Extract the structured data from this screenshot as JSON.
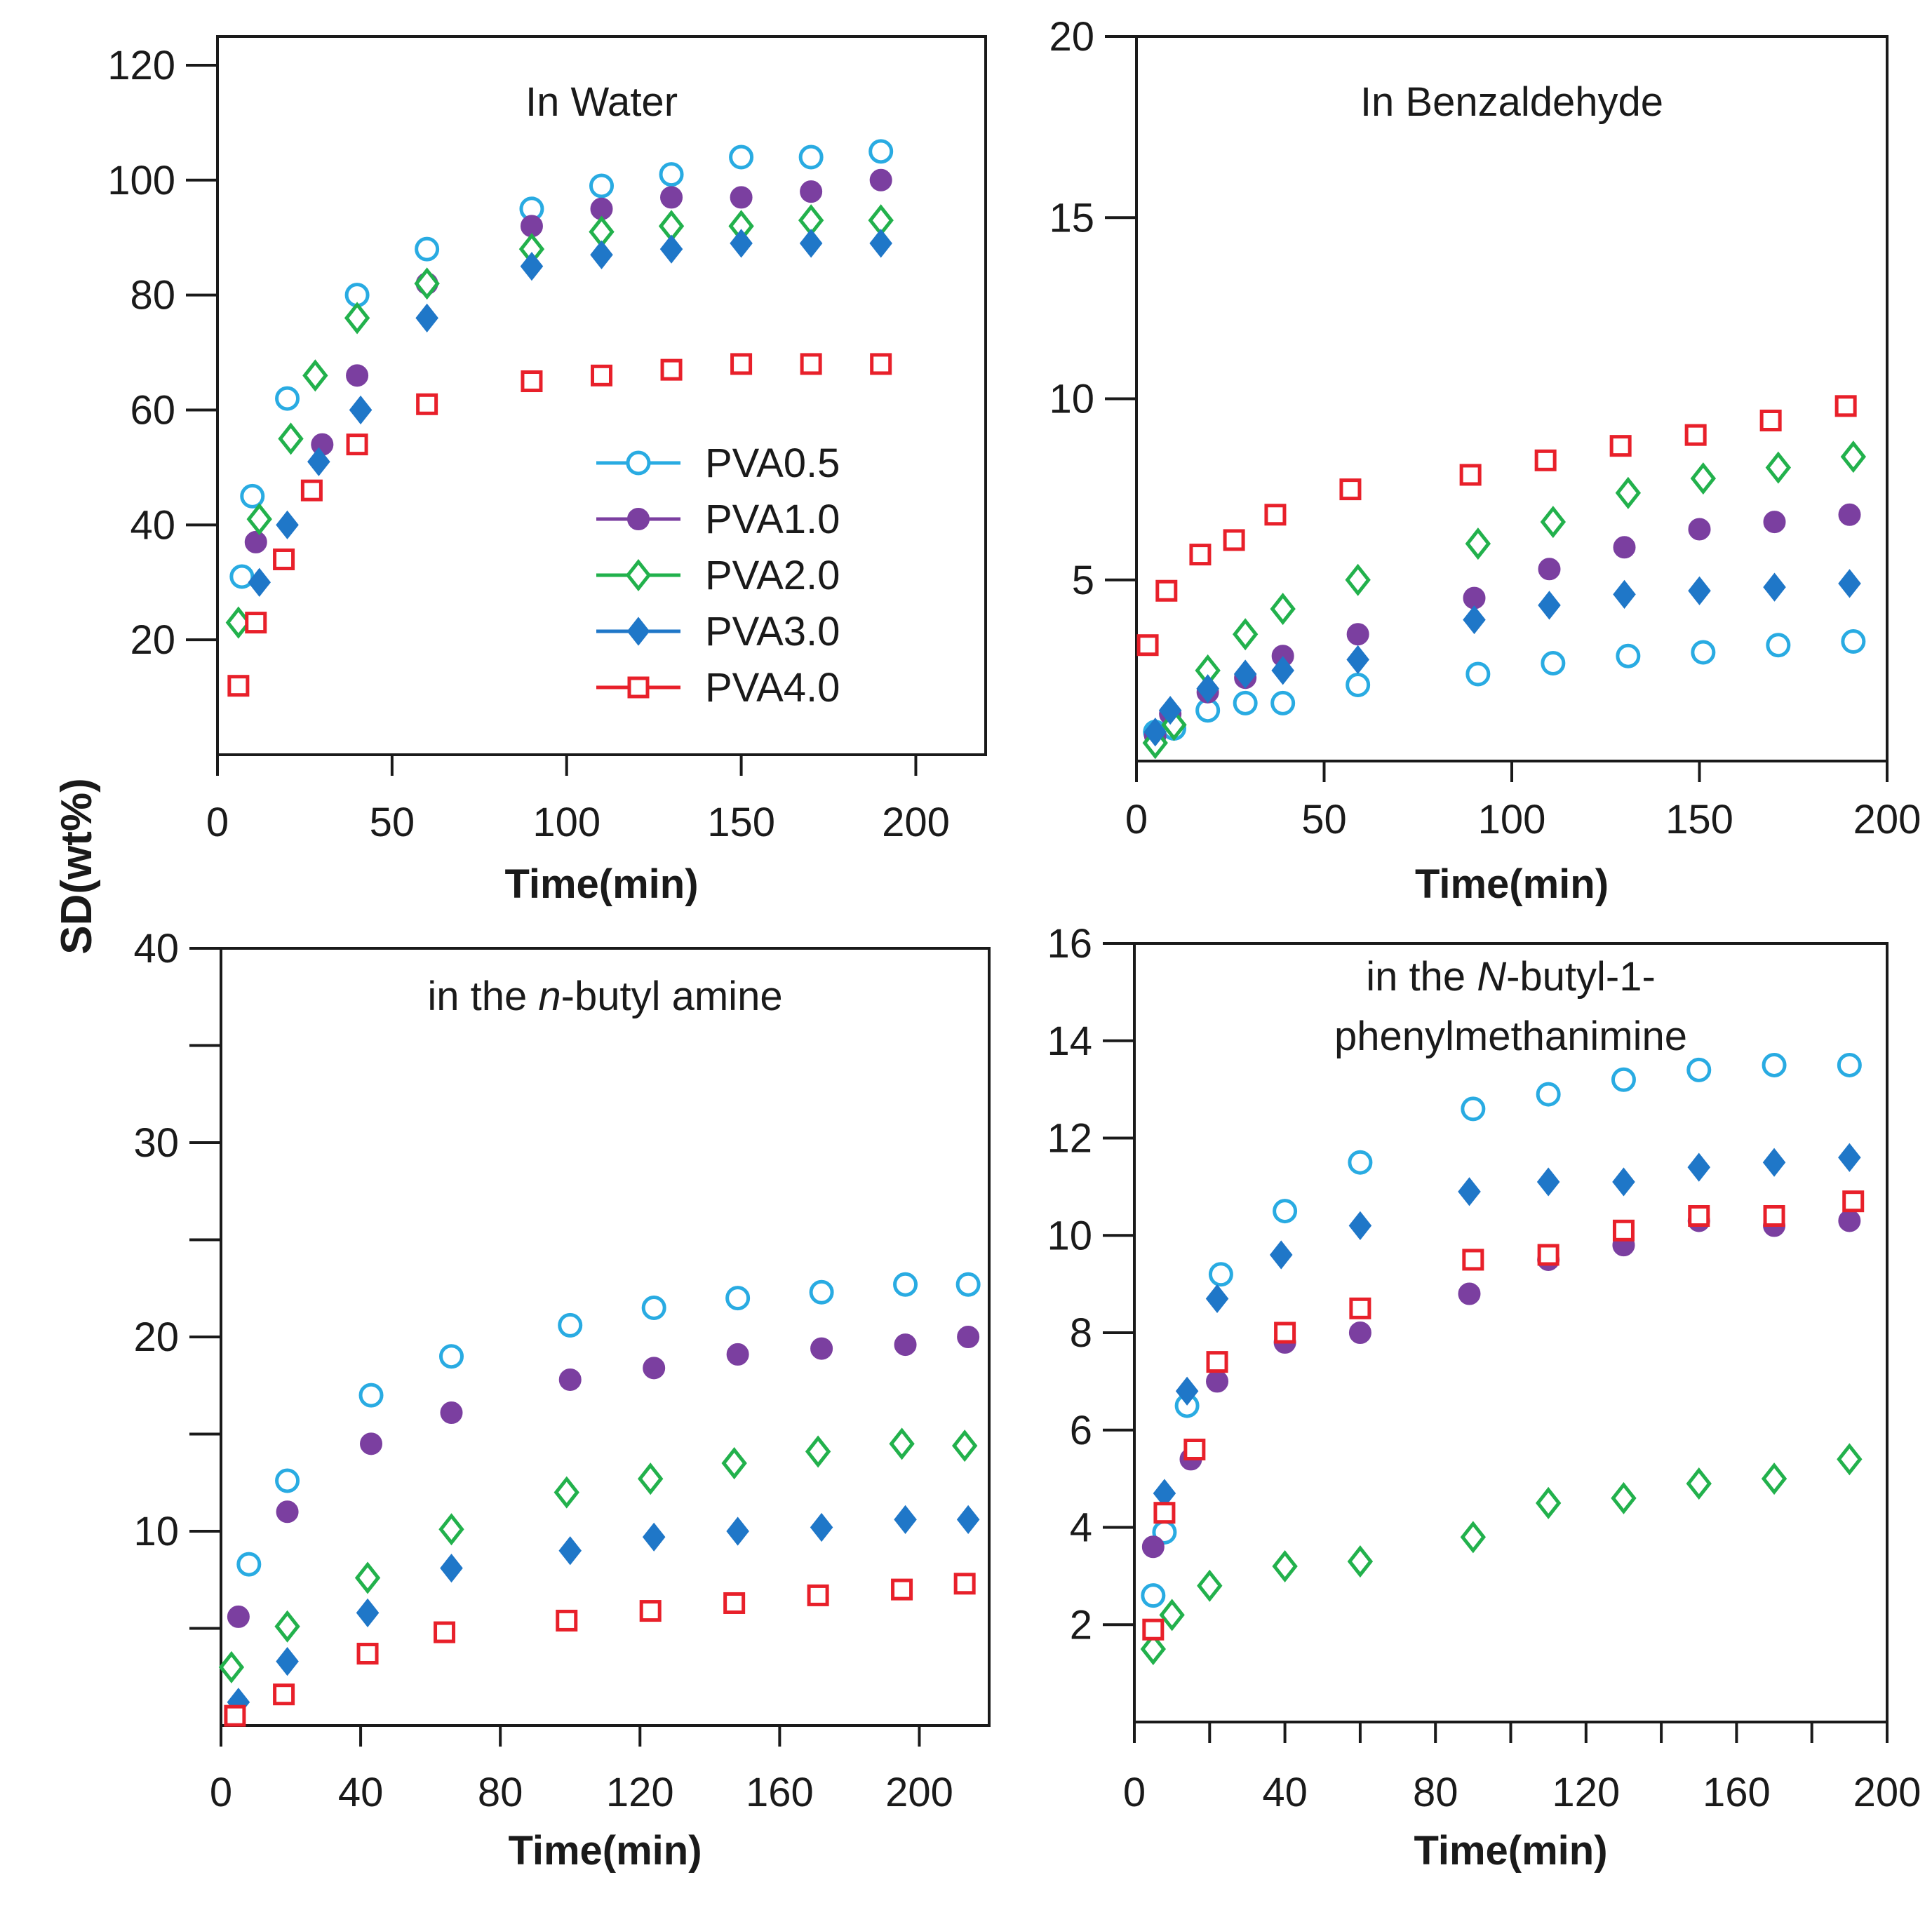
{
  "figure": {
    "shared_ylabel": "SD(wt%)",
    "colors": {
      "PVA0.5": "#29abe2",
      "PVA1.0": "#7b3fa0",
      "PVA2.0": "#22b14c",
      "PVA3.0": "#1f77c8",
      "PVA4.0": "#e8202a"
    },
    "markers": {
      "PVA0.5": "open-circle",
      "PVA1.0": "filled-circle",
      "PVA2.0": "open-diamond",
      "PVA3.0": "filled-diamond",
      "PVA4.0": "open-square"
    }
  },
  "chart_data": [
    {
      "type": "scatter",
      "title": "In Water",
      "xlabel": "Time(min)",
      "ylabel": "SD(wt%)",
      "xlim": [
        0,
        220
      ],
      "ylim": [
        0,
        125
      ],
      "xticks": [
        0,
        50,
        100,
        150,
        200
      ],
      "xtick_labels": [
        "0",
        "50",
        "100",
        "150",
        "200"
      ],
      "yticks": [
        20,
        40,
        60,
        80,
        100,
        120
      ],
      "ytick_labels": [
        "20",
        "40",
        "60",
        "80",
        "100",
        "120"
      ],
      "legend": {
        "placement": "center-right",
        "entries": [
          "PVA0.5",
          "PVA1.0",
          "PVA2.0",
          "PVA3.0",
          "PVA4.0"
        ]
      },
      "series": [
        {
          "name": "PVA0.5",
          "x": [
            7,
            10,
            20,
            40,
            60,
            90,
            110,
            130,
            150,
            170,
            190
          ],
          "y": [
            31,
            45,
            62,
            80,
            88,
            95,
            99,
            101,
            104,
            104,
            105
          ]
        },
        {
          "name": "PVA1.0",
          "x": [
            11,
            30,
            40,
            60,
            90,
            110,
            130,
            150,
            170,
            190
          ],
          "y": [
            37,
            54,
            66,
            82,
            92,
            95,
            97,
            97,
            98,
            100
          ]
        },
        {
          "name": "PVA2.0",
          "x": [
            6,
            12,
            21,
            28,
            40,
            60,
            90,
            110,
            130,
            150,
            170,
            190
          ],
          "y": [
            23,
            41,
            55,
            66,
            76,
            82,
            88,
            91,
            92,
            92,
            93,
            93
          ]
        },
        {
          "name": "PVA3.0",
          "x": [
            12,
            20,
            29,
            41,
            60,
            90,
            110,
            130,
            150,
            170,
            190
          ],
          "y": [
            30,
            40,
            51,
            60,
            76,
            85,
            87,
            88,
            89,
            89,
            89
          ]
        },
        {
          "name": "PVA4.0",
          "x": [
            6,
            11,
            19,
            27,
            40,
            60,
            90,
            110,
            130,
            150,
            170,
            190
          ],
          "y": [
            12,
            23,
            34,
            46,
            54,
            61,
            65,
            66,
            67,
            68,
            68,
            68
          ]
        }
      ]
    },
    {
      "type": "scatter",
      "title": "In Benzaldehyde",
      "xlabel": "Time(min)",
      "ylabel": "SD(wt%)",
      "xlim": [
        0,
        200
      ],
      "ylim": [
        0,
        20
      ],
      "xticks": [
        0,
        50,
        100,
        150,
        200
      ],
      "xtick_labels": [
        "0",
        "50",
        "100",
        "150",
        "200"
      ],
      "yticks": [
        5,
        10,
        15,
        20
      ],
      "ytick_labels": [
        "5",
        "10",
        "15",
        "20"
      ],
      "series": [
        {
          "name": "PVA0.5",
          "x": [
            5,
            10,
            19,
            29,
            39,
            59,
            91,
            111,
            131,
            151,
            171,
            191
          ],
          "y": [
            0.8,
            0.9,
            1.4,
            1.6,
            1.6,
            2.1,
            2.4,
            2.7,
            2.9,
            3.0,
            3.2,
            3.3
          ]
        },
        {
          "name": "PVA1.0",
          "x": [
            5,
            9,
            19,
            29,
            39,
            59,
            90,
            110,
            130,
            150,
            170,
            190
          ],
          "y": [
            0.7,
            1.3,
            1.9,
            2.3,
            2.9,
            3.5,
            4.5,
            5.3,
            5.9,
            6.4,
            6.6,
            6.8
          ]
        },
        {
          "name": "PVA2.0",
          "x": [
            5,
            10,
            19,
            29,
            39,
            59,
            91,
            111,
            131,
            151,
            171,
            191
          ],
          "y": [
            0.5,
            1.0,
            2.5,
            3.5,
            4.2,
            5.0,
            6.0,
            6.6,
            7.4,
            7.8,
            8.1,
            8.4
          ]
        },
        {
          "name": "PVA3.0",
          "x": [
            5,
            9,
            19,
            29,
            39,
            59,
            90,
            110,
            130,
            150,
            170,
            190
          ],
          "y": [
            0.8,
            1.4,
            2.0,
            2.4,
            2.5,
            2.8,
            3.9,
            4.3,
            4.6,
            4.7,
            4.8,
            4.9
          ]
        },
        {
          "name": "PVA4.0",
          "x": [
            3,
            8,
            17,
            26,
            37,
            57,
            89,
            109,
            129,
            149,
            169,
            189
          ],
          "y": [
            3.2,
            4.7,
            5.7,
            6.1,
            6.8,
            7.5,
            7.9,
            8.3,
            8.7,
            9.0,
            9.4,
            9.8
          ]
        }
      ]
    },
    {
      "type": "scatter",
      "title": "in the n-butyl amine",
      "title_parts": [
        "in the ",
        "n",
        "-butyl amine"
      ],
      "xlabel": "Time(min)",
      "ylabel": "SD(wt%)",
      "xlim": [
        0,
        220
      ],
      "ylim": [
        0,
        40
      ],
      "xticks": [
        0,
        40,
        80,
        120,
        160,
        200
      ],
      "xtick_labels": [
        "0",
        "40",
        "80",
        "120",
        "160",
        "200"
      ],
      "yticks": [
        5,
        10,
        15,
        20,
        25,
        30,
        35,
        40
      ],
      "ytick_labels": [
        "",
        "10",
        "",
        "20",
        "",
        "30",
        "",
        "40"
      ],
      "series": [
        {
          "name": "PVA0.5",
          "x": [
            8,
            19,
            43,
            66,
            100,
            124,
            148,
            172,
            196,
            214
          ],
          "y": [
            8.3,
            12.6,
            17.0,
            19.0,
            20.6,
            21.5,
            22.0,
            22.3,
            22.7,
            22.7
          ]
        },
        {
          "name": "PVA1.0",
          "x": [
            5,
            19,
            43,
            66,
            100,
            124,
            148,
            172,
            196,
            214
          ],
          "y": [
            5.6,
            11.0,
            14.5,
            16.1,
            17.8,
            18.4,
            19.1,
            19.4,
            19.6,
            20.0
          ]
        },
        {
          "name": "PVA2.0",
          "x": [
            3,
            19,
            42,
            66,
            99,
            123,
            147,
            171,
            195,
            213
          ],
          "y": [
            3.0,
            5.1,
            7.6,
            10.1,
            12.0,
            12.7,
            13.5,
            14.1,
            14.5,
            14.4
          ]
        },
        {
          "name": "PVA3.0",
          "x": [
            5,
            19,
            42,
            66,
            100,
            124,
            148,
            172,
            196,
            214
          ],
          "y": [
            1.2,
            3.3,
            5.8,
            8.1,
            9.0,
            9.7,
            10.0,
            10.2,
            10.6,
            10.6
          ]
        },
        {
          "name": "PVA4.0",
          "x": [
            4,
            18,
            42,
            64,
            99,
            123,
            147,
            171,
            195,
            213
          ],
          "y": [
            0.5,
            1.6,
            3.7,
            4.8,
            5.4,
            5.9,
            6.3,
            6.7,
            7.0,
            7.3
          ]
        }
      ]
    },
    {
      "type": "scatter",
      "title": "in the N-butyl-1-phenylmethanimine",
      "title_lines": [
        [
          "in the ",
          "N",
          "-butyl-1-"
        ],
        [
          "phenylmethanimine"
        ]
      ],
      "xlabel": "Time(min)",
      "ylabel": "SD(wt%)",
      "xlim": [
        0,
        200
      ],
      "ylim": [
        0,
        16
      ],
      "xticks": [
        0,
        20,
        40,
        60,
        80,
        100,
        120,
        140,
        160,
        180,
        200
      ],
      "xtick_labels": [
        "0",
        "",
        "40",
        "",
        "80",
        "",
        "120",
        "",
        "160",
        "",
        "200"
      ],
      "yticks": [
        2,
        4,
        6,
        8,
        10,
        12,
        14,
        16
      ],
      "ytick_labels": [
        "2",
        "4",
        "6",
        "8",
        "10",
        "12",
        "14",
        "16"
      ],
      "series": [
        {
          "name": "PVA0.5",
          "x": [
            5,
            8,
            14,
            23,
            40,
            60,
            90,
            110,
            130,
            150,
            170,
            190
          ],
          "y": [
            2.6,
            3.9,
            6.5,
            9.2,
            10.5,
            11.5,
            12.6,
            12.9,
            13.2,
            13.4,
            13.5,
            13.5
          ]
        },
        {
          "name": "PVA1.0",
          "x": [
            5,
            15,
            22,
            40,
            60,
            89,
            110,
            130,
            150,
            170,
            190
          ],
          "y": [
            3.6,
            5.4,
            7.0,
            7.8,
            8.0,
            8.8,
            9.5,
            9.8,
            10.3,
            10.2,
            10.3
          ]
        },
        {
          "name": "PVA2.0",
          "x": [
            5,
            10,
            20,
            40,
            60,
            90,
            110,
            130,
            150,
            170,
            190
          ],
          "y": [
            1.5,
            2.2,
            2.8,
            3.2,
            3.3,
            3.8,
            4.5,
            4.6,
            4.9,
            5.0,
            5.4
          ]
        },
        {
          "name": "PVA3.0",
          "x": [
            8,
            14,
            22,
            39,
            60,
            89,
            110,
            130,
            150,
            170,
            190
          ],
          "y": [
            4.7,
            6.8,
            8.7,
            9.6,
            10.2,
            10.9,
            11.1,
            11.1,
            11.4,
            11.5,
            11.6
          ]
        },
        {
          "name": "PVA4.0",
          "x": [
            5,
            8,
            16,
            22,
            40,
            60,
            90,
            110,
            130,
            150,
            170,
            191
          ],
          "y": [
            1.9,
            4.3,
            5.6,
            7.4,
            8.0,
            8.5,
            9.5,
            9.6,
            10.1,
            10.4,
            10.4,
            10.7
          ]
        }
      ]
    }
  ]
}
